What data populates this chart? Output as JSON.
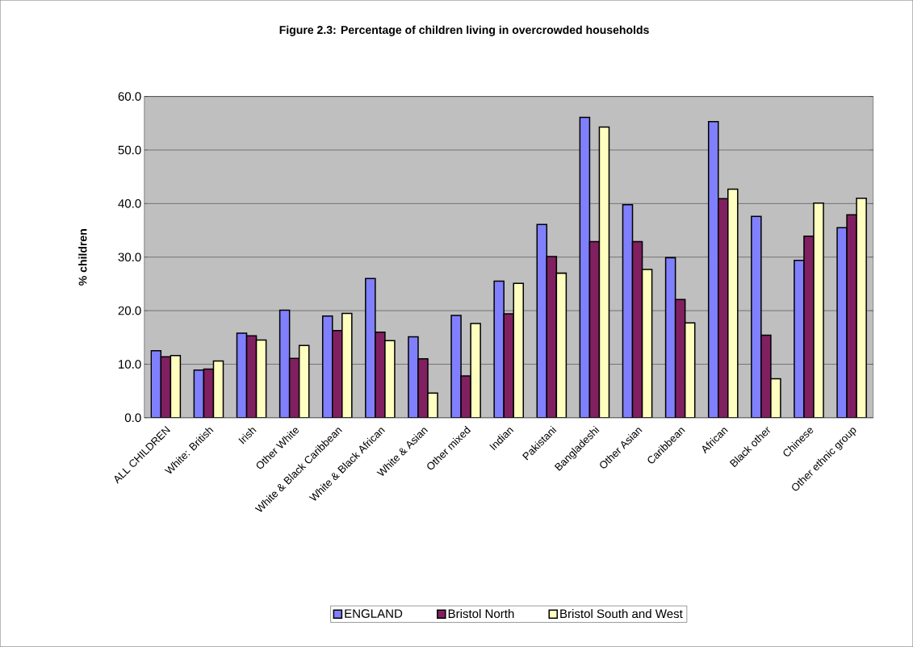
{
  "chart_data": {
    "type": "bar",
    "title": "Figure 2.3: Percentage of children living in overcrowded households",
    "ylabel": "% children",
    "categories": [
      "ALL  CHILDREN",
      "White: British",
      "Irish",
      "Other White",
      "White & Black Caribbean",
      "White & Black African",
      "White & Asian",
      "Other mixed",
      "Indian",
      "Pakistani",
      "Bangladeshi",
      "Other Asian",
      "Caribbean",
      "African",
      "Black other",
      "Chinese",
      "Other ethnic group"
    ],
    "series": [
      {
        "name": "ENGLAND",
        "color": "#8080ff",
        "values": [
          12.5,
          8.9,
          15.8,
          20.1,
          19.0,
          26.0,
          15.1,
          19.1,
          25.5,
          36.1,
          56.1,
          39.8,
          29.9,
          55.3,
          37.6,
          29.4,
          35.5
        ]
      },
      {
        "name": "Bristol North",
        "color": "#802060",
        "values": [
          11.4,
          9.1,
          15.3,
          11.1,
          16.3,
          16.0,
          11.0,
          7.8,
          19.4,
          30.1,
          32.9,
          32.9,
          22.1,
          40.9,
          15.4,
          33.9,
          37.9
        ]
      },
      {
        "name": "Bristol South and West",
        "color": "#ffffc0",
        "values": [
          11.6,
          10.6,
          14.5,
          13.5,
          19.5,
          14.4,
          4.6,
          17.6,
          25.1,
          27.0,
          54.3,
          27.7,
          17.7,
          42.7,
          7.3,
          40.1,
          41.0
        ]
      }
    ],
    "ylim": [
      0,
      60
    ],
    "yticks": [
      {
        "value": 0,
        "label": "0.0"
      },
      {
        "value": 10,
        "label": "10.0"
      },
      {
        "value": 20,
        "label": "20.0"
      },
      {
        "value": 30,
        "label": "30.0"
      },
      {
        "value": 40,
        "label": "40.0"
      },
      {
        "value": 50,
        "label": "50.0"
      },
      {
        "value": 60,
        "label": "60.0"
      }
    ],
    "grid": "y",
    "legend": "bottom"
  }
}
